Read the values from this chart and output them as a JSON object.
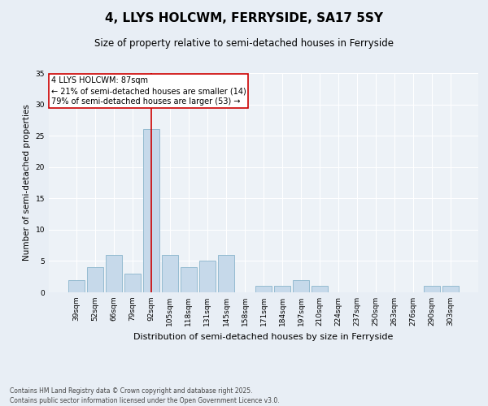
{
  "title": "4, LLYS HOLCWM, FERRYSIDE, SA17 5SY",
  "subtitle": "Size of property relative to semi-detached houses in Ferryside",
  "xlabel": "Distribution of semi-detached houses by size in Ferryside",
  "ylabel": "Number of semi-detached properties",
  "categories": [
    "39sqm",
    "52sqm",
    "66sqm",
    "79sqm",
    "92sqm",
    "105sqm",
    "118sqm",
    "131sqm",
    "145sqm",
    "158sqm",
    "171sqm",
    "184sqm",
    "197sqm",
    "210sqm",
    "224sqm",
    "237sqm",
    "250sqm",
    "263sqm",
    "276sqm",
    "290sqm",
    "303sqm"
  ],
  "values": [
    2,
    4,
    6,
    3,
    26,
    6,
    4,
    5,
    6,
    0,
    1,
    1,
    2,
    1,
    0,
    0,
    0,
    0,
    0,
    1,
    1
  ],
  "bar_color": "#c6d9ea",
  "bar_edge_color": "#8ab4cc",
  "marker_bin_index": 4,
  "marker_color": "#cc0000",
  "ylim": [
    0,
    35
  ],
  "yticks": [
    0,
    5,
    10,
    15,
    20,
    25,
    30,
    35
  ],
  "annotation_title": "4 LLYS HOLCWM: 87sqm",
  "annotation_line1": "← 21% of semi-detached houses are smaller (14)",
  "annotation_line2": "79% of semi-detached houses are larger (53) →",
  "footer1": "Contains HM Land Registry data © Crown copyright and database right 2025.",
  "footer2": "Contains public sector information licensed under the Open Government Licence v3.0.",
  "bg_color": "#e8eef5",
  "plot_bg_color": "#edf2f7",
  "title_fontsize": 11,
  "subtitle_fontsize": 8.5,
  "xlabel_fontsize": 8,
  "ylabel_fontsize": 7.5,
  "tick_fontsize": 6.5,
  "annot_fontsize": 7,
  "footer_fontsize": 5.5
}
